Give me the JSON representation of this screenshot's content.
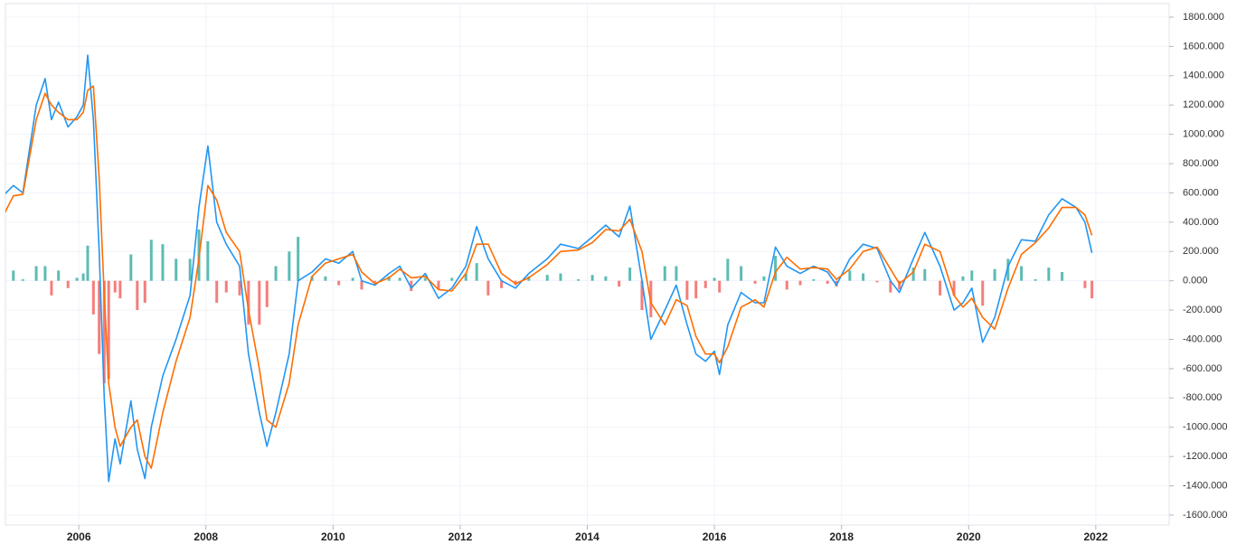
{
  "chart_data": {
    "type": "macd",
    "x": [
      2004.76,
      2004.97,
      2005.12,
      2005.33,
      2005.47,
      2005.57,
      2005.68,
      2005.83,
      2005.97,
      2006.07,
      2006.14,
      2006.23,
      2006.32,
      2006.4,
      2006.47,
      2006.57,
      2006.65,
      2006.82,
      2006.92,
      2007.04,
      2007.14,
      2007.32,
      2007.53,
      2007.75,
      2007.89,
      2008.03,
      2008.17,
      2008.32,
      2008.53,
      2008.67,
      2008.84,
      2008.96,
      2009.1,
      2009.31,
      2009.45,
      2009.67,
      2009.88,
      2010.09,
      2010.31,
      2010.45,
      2010.66,
      2010.88,
      2011.05,
      2011.23,
      2011.45,
      2011.66,
      2011.87,
      2012.09,
      2012.26,
      2012.44,
      2012.65,
      2012.87,
      2013.08,
      2013.37,
      2013.58,
      2013.86,
      2014.08,
      2014.29,
      2014.5,
      2014.67,
      2014.86,
      2015.0,
      2015.22,
      2015.4,
      2015.57,
      2015.71,
      2015.86,
      2016.0,
      2016.08,
      2016.21,
      2016.42,
      2016.64,
      2016.78,
      2016.96,
      2017.14,
      2017.35,
      2017.56,
      2017.78,
      2017.92,
      2018.13,
      2018.34,
      2018.56,
      2018.77,
      2018.91,
      2019.13,
      2019.31,
      2019.55,
      2019.77,
      2019.91,
      2020.05,
      2020.22,
      2020.41,
      2020.62,
      2020.83,
      2021.05,
      2021.26,
      2021.47,
      2021.69,
      2021.83,
      2021.94
    ],
    "series": [
      {
        "kind": "histogram",
        "color": "#26a69a",
        "negative_color": "#ef5350",
        "values": [
          160,
          70,
          10,
          100,
          100,
          -100,
          70,
          -50,
          20,
          50,
          240,
          -230,
          -500,
          -700,
          -670,
          -80,
          -120,
          180,
          -200,
          -150,
          280,
          250,
          150,
          150,
          350,
          270,
          -150,
          -80,
          -100,
          -300,
          -300,
          -180,
          100,
          200,
          300,
          30,
          30,
          -30,
          20,
          -60,
          -10,
          30,
          20,
          -70,
          20,
          -60,
          20,
          50,
          120,
          -100,
          -50,
          -30,
          30,
          40,
          50,
          10,
          40,
          30,
          -40,
          90,
          -200,
          -250,
          100,
          100,
          -130,
          -120,
          -50,
          20,
          -80,
          150,
          100,
          -20,
          30,
          170,
          -60,
          -30,
          10,
          -20,
          -40,
          70,
          50,
          -10,
          -80,
          -60,
          90,
          80,
          -100,
          -100,
          30,
          70,
          -170,
          80,
          150,
          100,
          10,
          90,
          60,
          0,
          -50,
          -120
        ]
      },
      {
        "kind": "line",
        "color": "#2196f3",
        "values": [
          560,
          650,
          600,
          1200,
          1380,
          1100,
          1220,
          1050,
          1120,
          1200,
          1540,
          1100,
          200,
          -800,
          -1370,
          -1080,
          -1250,
          -820,
          -1150,
          -1350,
          -1000,
          -650,
          -400,
          -100,
          500,
          920,
          400,
          250,
          100,
          -500,
          -900,
          -1130,
          -900,
          -500,
          0,
          60,
          150,
          120,
          200,
          0,
          -30,
          50,
          100,
          -50,
          50,
          -120,
          -50,
          100,
          370,
          150,
          0,
          -50,
          50,
          150,
          250,
          220,
          300,
          380,
          300,
          510,
          0,
          -400,
          -200,
          -30,
          -300,
          -500,
          -550,
          -480,
          -640,
          -300,
          -80,
          -150,
          -150,
          230,
          100,
          50,
          100,
          60,
          -30,
          150,
          250,
          220,
          0,
          -80,
          150,
          330,
          100,
          -200,
          -150,
          -50,
          -420,
          -250,
          100,
          280,
          270,
          450,
          560,
          500,
          400,
          190
        ]
      },
      {
        "kind": "line",
        "color": "#ff6d00",
        "values": [
          400,
          580,
          590,
          1100,
          1280,
          1200,
          1150,
          1100,
          1100,
          1150,
          1300,
          1330,
          700,
          -100,
          -700,
          -1000,
          -1130,
          -1000,
          -950,
          -1200,
          -1280,
          -900,
          -550,
          -250,
          150,
          650,
          550,
          330,
          200,
          -200,
          -600,
          -950,
          -1000,
          -700,
          -300,
          30,
          120,
          150,
          180,
          60,
          -20,
          20,
          80,
          20,
          30,
          -60,
          -70,
          50,
          250,
          250,
          50,
          -20,
          20,
          110,
          200,
          210,
          260,
          350,
          340,
          420,
          200,
          -150,
          -300,
          -130,
          -170,
          -380,
          -500,
          -500,
          -560,
          -450,
          -180,
          -130,
          -180,
          60,
          160,
          80,
          90,
          80,
          10,
          80,
          200,
          230,
          80,
          -20,
          60,
          250,
          200,
          -100,
          -180,
          -120,
          -250,
          -330,
          -50,
          180,
          260,
          360,
          500,
          500,
          450,
          310
        ]
      }
    ],
    "xlim": [
      2004.76,
      2023.14
    ],
    "xticks": [
      2006,
      2008,
      2010,
      2012,
      2014,
      2016,
      2018,
      2020,
      2022
    ],
    "ylim": [
      -1668,
      1917
    ],
    "yticks": [
      {
        "value": 1800,
        "label": "1800.000"
      },
      {
        "value": 1600,
        "label": "1600.000"
      },
      {
        "value": 1400,
        "label": "1400.000"
      },
      {
        "value": 1200,
        "label": "1200.000"
      },
      {
        "value": 1000,
        "label": "1000.000"
      },
      {
        "value": 800,
        "label": "800.000"
      },
      {
        "value": 600,
        "label": "600.000"
      },
      {
        "value": 400,
        "label": "400.000"
      },
      {
        "value": 200,
        "label": "200.000"
      },
      {
        "value": 0,
        "label": "0.000"
      },
      {
        "value": -200,
        "label": "-200.000"
      },
      {
        "value": -400,
        "label": "-400.000"
      },
      {
        "value": -600,
        "label": "-600.000"
      },
      {
        "value": -800,
        "label": "-800.000"
      },
      {
        "value": -1000,
        "label": "-1000.000"
      },
      {
        "value": -1200,
        "label": "-1200.000"
      },
      {
        "value": -1400,
        "label": "-1400.000"
      },
      {
        "value": -1600,
        "label": "-1600.000"
      }
    ],
    "grid": true
  }
}
